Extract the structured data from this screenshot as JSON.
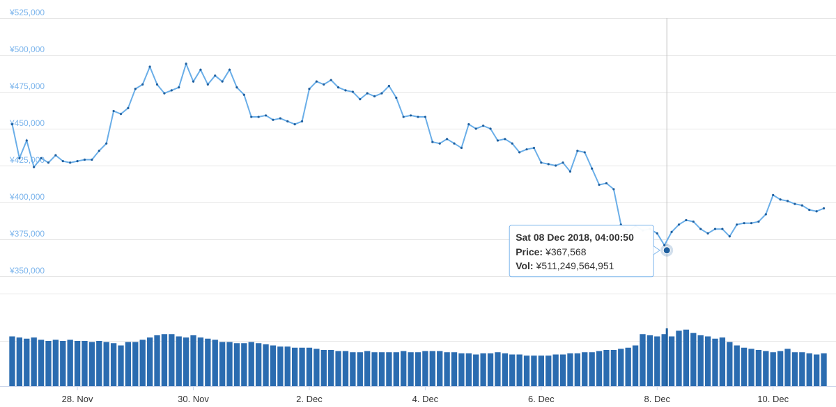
{
  "chart_data": [
    {
      "type": "line",
      "color": "#6aaee8",
      "dot_color": "#1f5f9e",
      "x": [
        "2018-11-26T21:00",
        "2018-11-27T00:00",
        "2018-11-27T03:00",
        "2018-11-27T06:00",
        "2018-11-27T09:00",
        "2018-11-27T12:00",
        "2018-11-27T15:00",
        "2018-11-27T18:00",
        "2018-11-27T21:00",
        "2018-11-28T00:00",
        "2018-11-28T03:00",
        "2018-11-28T06:00",
        "2018-11-28T09:00",
        "2018-11-28T12:00",
        "2018-11-28T15:00",
        "2018-11-28T18:00",
        "2018-11-28T21:00",
        "2018-11-29T00:00",
        "2018-11-29T03:00",
        "2018-11-29T06:00",
        "2018-11-29T09:00",
        "2018-11-29T12:00",
        "2018-11-29T15:00",
        "2018-11-29T18:00",
        "2018-11-29T21:00",
        "2018-11-30T00:00",
        "2018-11-30T03:00",
        "2018-11-30T06:00",
        "2018-11-30T09:00",
        "2018-11-30T12:00",
        "2018-11-30T15:00",
        "2018-11-30T18:00",
        "2018-11-30T21:00",
        "2018-12-01T00:00",
        "2018-12-01T03:00",
        "2018-12-01T06:00",
        "2018-12-01T09:00",
        "2018-12-01T12:00",
        "2018-12-01T15:00",
        "2018-12-01T18:00",
        "2018-12-01T21:00",
        "2018-12-02T00:00",
        "2018-12-02T03:00",
        "2018-12-02T06:00",
        "2018-12-02T09:00",
        "2018-12-02T12:00",
        "2018-12-02T15:00",
        "2018-12-02T18:00",
        "2018-12-02T21:00",
        "2018-12-03T00:00",
        "2018-12-03T03:00",
        "2018-12-03T06:00",
        "2018-12-03T09:00",
        "2018-12-03T12:00",
        "2018-12-03T15:00",
        "2018-12-03T18:00",
        "2018-12-03T21:00",
        "2018-12-04T00:00",
        "2018-12-04T03:00",
        "2018-12-04T06:00",
        "2018-12-04T09:00",
        "2018-12-04T12:00",
        "2018-12-04T15:00",
        "2018-12-04T18:00",
        "2018-12-04T21:00",
        "2018-12-05T00:00",
        "2018-12-05T03:00",
        "2018-12-05T06:00",
        "2018-12-05T09:00",
        "2018-12-05T12:00",
        "2018-12-05T15:00",
        "2018-12-05T18:00",
        "2018-12-05T21:00",
        "2018-12-06T00:00",
        "2018-12-06T03:00",
        "2018-12-06T06:00",
        "2018-12-06T09:00",
        "2018-12-06T12:00",
        "2018-12-06T15:00",
        "2018-12-06T18:00",
        "2018-12-06T21:00",
        "2018-12-07T00:00",
        "2018-12-07T03:00",
        "2018-12-07T06:00",
        "2018-12-07T09:00",
        "2018-12-07T12:00",
        "2018-12-07T15:00",
        "2018-12-07T18:00",
        "2018-12-07T21:00",
        "2018-12-08T00:00",
        "2018-12-08T03:00",
        "2018-12-08T06:00",
        "2018-12-08T09:00",
        "2018-12-08T12:00",
        "2018-12-08T15:00",
        "2018-12-08T18:00",
        "2018-12-08T21:00",
        "2018-12-09T00:00",
        "2018-12-09T03:00",
        "2018-12-09T06:00",
        "2018-12-09T09:00",
        "2018-12-09T12:00",
        "2018-12-09T15:00",
        "2018-12-09T18:00",
        "2018-12-09T21:00",
        "2018-12-10T00:00",
        "2018-12-10T03:00",
        "2018-12-10T06:00",
        "2018-12-10T09:00",
        "2018-12-10T12:00",
        "2018-12-10T15:00",
        "2018-12-10T18:00",
        "2018-12-10T21:00"
      ],
      "values": [
        453000,
        430000,
        442000,
        424000,
        430000,
        427000,
        432000,
        428000,
        427000,
        428000,
        429000,
        429000,
        435000,
        440000,
        462000,
        460000,
        464000,
        477000,
        480000,
        492000,
        480000,
        474000,
        476000,
        478000,
        494000,
        482000,
        490000,
        480000,
        486000,
        482000,
        490000,
        478000,
        473000,
        458000,
        458000,
        459000,
        456000,
        457000,
        455000,
        453000,
        455000,
        477000,
        482000,
        480000,
        483000,
        478000,
        476000,
        475000,
        470000,
        474000,
        472000,
        474000,
        479000,
        471000,
        458000,
        459000,
        458000,
        458000,
        441000,
        440000,
        443000,
        440000,
        437000,
        453000,
        450000,
        452000,
        450000,
        442000,
        443000,
        440000,
        434000,
        436000,
        437000,
        427000,
        426000,
        425000,
        427000,
        421000,
        435000,
        434000,
        423000,
        412000,
        413000,
        409000,
        385000,
        380000,
        384000,
        381000,
        382000,
        379000,
        371000,
        380000,
        385000,
        388000,
        387000,
        382000,
        379000,
        382000,
        382000,
        377000,
        385000,
        386000,
        386000,
        387000,
        392000,
        405000,
        402000,
        401000,
        399000,
        398000,
        395000,
        394000,
        396000
      ],
      "xlim": [
        "2018-11-26T20:00",
        "2018-12-10T22:00"
      ],
      "ylim": [
        350000,
        525000
      ],
      "yticks": [
        {
          "value": 350000,
          "label": "¥350,000"
        },
        {
          "value": 375000,
          "label": "¥375,000"
        },
        {
          "value": 400000,
          "label": "¥400,000"
        },
        {
          "value": 425000,
          "label": "¥425,000"
        },
        {
          "value": 450000,
          "label": "¥450,000"
        },
        {
          "value": 475000,
          "label": "¥475,000"
        },
        {
          "value": 500000,
          "label": "¥500,000"
        },
        {
          "value": 525000,
          "label": "¥525,000"
        }
      ],
      "grid": true,
      "tooltip": {
        "x": "2018-12-08T04:00:50",
        "title": "Sat 08 Dec 2018, 04:00:50",
        "price_label": "Price:",
        "price": 367568,
        "price_text": "¥367,568",
        "vol_label": "Vol:",
        "vol": 511249564951,
        "vol_text": "¥511,249,564,951",
        "color": "#1f5f9e"
      }
    },
    {
      "type": "bar",
      "color": "#2b6cb0",
      "x": [
        "2018-11-26T21:00",
        "2018-11-27T00:00",
        "2018-11-27T03:00",
        "2018-11-27T06:00",
        "2018-11-27T09:00",
        "2018-11-27T12:00",
        "2018-11-27T15:00",
        "2018-11-27T18:00",
        "2018-11-27T21:00",
        "2018-11-28T00:00",
        "2018-11-28T03:00",
        "2018-11-28T06:00",
        "2018-11-28T09:00",
        "2018-11-28T12:00",
        "2018-11-28T15:00",
        "2018-11-28T18:00",
        "2018-11-28T21:00",
        "2018-11-29T00:00",
        "2018-11-29T03:00",
        "2018-11-29T06:00",
        "2018-11-29T09:00",
        "2018-11-29T12:00",
        "2018-11-29T15:00",
        "2018-11-29T18:00",
        "2018-11-29T21:00",
        "2018-11-30T00:00",
        "2018-11-30T03:00",
        "2018-11-30T06:00",
        "2018-11-30T09:00",
        "2018-11-30T12:00",
        "2018-11-30T15:00",
        "2018-11-30T18:00",
        "2018-11-30T21:00",
        "2018-12-01T00:00",
        "2018-12-01T03:00",
        "2018-12-01T06:00",
        "2018-12-01T09:00",
        "2018-12-01T12:00",
        "2018-12-01T15:00",
        "2018-12-01T18:00",
        "2018-12-01T21:00",
        "2018-12-02T00:00",
        "2018-12-02T03:00",
        "2018-12-02T06:00",
        "2018-12-02T09:00",
        "2018-12-02T12:00",
        "2018-12-02T15:00",
        "2018-12-02T18:00",
        "2018-12-02T21:00",
        "2018-12-03T00:00",
        "2018-12-03T03:00",
        "2018-12-03T06:00",
        "2018-12-03T09:00",
        "2018-12-03T12:00",
        "2018-12-03T15:00",
        "2018-12-03T18:00",
        "2018-12-03T21:00",
        "2018-12-04T00:00",
        "2018-12-04T03:00",
        "2018-12-04T06:00",
        "2018-12-04T09:00",
        "2018-12-04T12:00",
        "2018-12-04T15:00",
        "2018-12-04T18:00",
        "2018-12-04T21:00",
        "2018-12-05T00:00",
        "2018-12-05T03:00",
        "2018-12-05T06:00",
        "2018-12-05T09:00",
        "2018-12-05T12:00",
        "2018-12-05T15:00",
        "2018-12-05T18:00",
        "2018-12-05T21:00",
        "2018-12-06T00:00",
        "2018-12-06T03:00",
        "2018-12-06T06:00",
        "2018-12-06T09:00",
        "2018-12-06T12:00",
        "2018-12-06T15:00",
        "2018-12-06T18:00",
        "2018-12-06T21:00",
        "2018-12-07T00:00",
        "2018-12-07T03:00",
        "2018-12-07T06:00",
        "2018-12-07T09:00",
        "2018-12-07T12:00",
        "2018-12-07T15:00",
        "2018-12-07T18:00",
        "2018-12-07T21:00",
        "2018-12-08T00:00",
        "2018-12-08T03:00",
        "2018-12-08T06:00",
        "2018-12-08T09:00",
        "2018-12-08T12:00",
        "2018-12-08T15:00",
        "2018-12-08T18:00",
        "2018-12-08T21:00",
        "2018-12-09T00:00",
        "2018-12-09T03:00",
        "2018-12-09T06:00",
        "2018-12-09T09:00",
        "2018-12-09T12:00",
        "2018-12-09T15:00",
        "2018-12-09T18:00",
        "2018-12-09T21:00",
        "2018-12-10T00:00",
        "2018-12-10T03:00",
        "2018-12-10T06:00",
        "2018-12-10T09:00",
        "2018-12-10T12:00",
        "2018-12-10T15:00",
        "2018-12-10T18:00",
        "2018-12-10T21:00"
      ],
      "values": [
        440000000000.0,
        430000000000.0,
        420000000000.0,
        430000000000.0,
        410000000000.0,
        400000000000.0,
        410000000000.0,
        400000000000.0,
        410000000000.0,
        400000000000.0,
        400000000000.0,
        390000000000.0,
        400000000000.0,
        390000000000.0,
        380000000000.0,
        360000000000.0,
        390000000000.0,
        390000000000.0,
        410000000000.0,
        430000000000.0,
        450000000000.0,
        460000000000.0,
        460000000000.0,
        440000000000.0,
        430000000000.0,
        450000000000.0,
        430000000000.0,
        420000000000.0,
        410000000000.0,
        390000000000.0,
        390000000000.0,
        380000000000.0,
        380000000000.0,
        390000000000.0,
        380000000000.0,
        370000000000.0,
        360000000000.0,
        350000000000.0,
        350000000000.0,
        340000000000.0,
        340000000000.0,
        340000000000.0,
        330000000000.0,
        320000000000.0,
        320000000000.0,
        310000000000.0,
        310000000000.0,
        300000000000.0,
        300000000000.0,
        310000000000.0,
        300000000000.0,
        300000000000.0,
        300000000000.0,
        300000000000.0,
        310000000000.0,
        300000000000.0,
        300000000000.0,
        310000000000.0,
        310000000000.0,
        310000000000.0,
        300000000000.0,
        300000000000.0,
        290000000000.0,
        290000000000.0,
        280000000000.0,
        290000000000.0,
        290000000000.0,
        300000000000.0,
        290000000000.0,
        280000000000.0,
        280000000000.0,
        270000000000.0,
        270000000000.0,
        270000000000.0,
        270000000000.0,
        280000000000.0,
        280000000000.0,
        290000000000.0,
        290000000000.0,
        300000000000.0,
        300000000000.0,
        310000000000.0,
        320000000000.0,
        320000000000.0,
        330000000000.0,
        340000000000.0,
        360000000000.0,
        460000000000.0,
        450000000000.0,
        440000000000.0,
        460000000000.0,
        440000000000.0,
        490000000000.0,
        500000000000.0,
        470000000000.0,
        450000000000.0,
        440000000000.0,
        420000000000.0,
        430000000000.0,
        390000000000.0,
        360000000000.0,
        340000000000.0,
        330000000000.0,
        320000000000.0,
        310000000000.0,
        300000000000.0,
        310000000000.0,
        330000000000.0,
        300000000000.0,
        300000000000.0,
        290000000000.0,
        280000000000.0,
        290000000000.0
      ],
      "xlim": [
        "2018-11-26T20:00",
        "2018-12-10T22:00"
      ],
      "ylim": [
        0,
        800000000000.0
      ],
      "xticks": [
        {
          "value": "2018-11-28T00:00",
          "label": "28. Nov"
        },
        {
          "value": "2018-11-30T00:00",
          "label": "30. Nov"
        },
        {
          "value": "2018-12-02T00:00",
          "label": "2. Dec"
        },
        {
          "value": "2018-12-04T00:00",
          "label": "4. Dec"
        },
        {
          "value": "2018-12-06T00:00",
          "label": "6. Dec"
        },
        {
          "value": "2018-12-08T00:00",
          "label": "8. Dec"
        },
        {
          "value": "2018-12-10T00:00",
          "label": "10. Dec"
        }
      ]
    }
  ]
}
